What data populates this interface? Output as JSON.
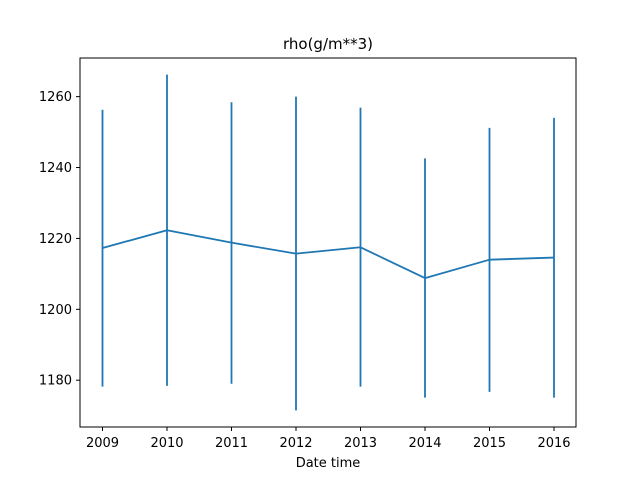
{
  "chart_data": {
    "type": "line",
    "title": "rho(g/m**3)",
    "xlabel": "Date time",
    "ylabel": "",
    "x": [
      "2009",
      "2010",
      "2011",
      "2012",
      "2013",
      "2014",
      "2015",
      "2016"
    ],
    "series": [
      {
        "values": [
          1217.3,
          1222.3,
          1218.8,
          1215.7,
          1217.5,
          1208.8,
          1214.0,
          1214.6
        ],
        "error_low": [
          1178.2,
          1178.4,
          1179.0,
          1171.5,
          1178.2,
          1175.1,
          1176.7,
          1175.1
        ],
        "error_high": [
          1256.3,
          1266.2,
          1258.4,
          1260.0,
          1256.9,
          1242.6,
          1251.2,
          1254.0
        ],
        "color": "#1f77b4"
      }
    ],
    "ylim": [
      1166.8,
      1270.9
    ],
    "yticks": [
      1180,
      1200,
      1220,
      1240,
      1260
    ],
    "grid": false,
    "legend": "none"
  }
}
